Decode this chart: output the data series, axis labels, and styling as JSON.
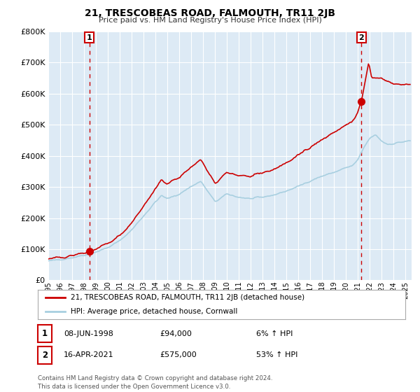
{
  "title": "21, TRESCOBEAS ROAD, FALMOUTH, TR11 2JB",
  "subtitle": "Price paid vs. HM Land Registry's House Price Index (HPI)",
  "sale1_date": "08-JUN-1998",
  "sale1_price": 94000,
  "sale1_label": "6% ↑ HPI",
  "sale1_year": 1998.44,
  "sale2_date": "16-APR-2021",
  "sale2_price": 575000,
  "sale2_label": "53% ↑ HPI",
  "sale2_year": 2021.29,
  "legend_label1": "21, TRESCOBEAS ROAD, FALMOUTH, TR11 2JB (detached house)",
  "legend_label2": "HPI: Average price, detached house, Cornwall",
  "footnote": "Contains HM Land Registry data © Crown copyright and database right 2024.\nThis data is licensed under the Open Government Licence v3.0.",
  "hpi_color": "#a8cfe0",
  "price_color": "#cc0000",
  "bg_color": "#ddeaf5",
  "grid_color": "#ffffff",
  "start_year": 1995.3,
  "end_year": 2025.5,
  "y_min": 0,
  "y_max": 800000,
  "y_ticks": [
    0,
    100000,
    200000,
    300000,
    400000,
    500000,
    600000,
    700000,
    800000
  ],
  "y_tick_labels": [
    "£0",
    "£100K",
    "£200K",
    "£300K",
    "£400K",
    "£500K",
    "£600K",
    "£700K",
    "£800K"
  ]
}
